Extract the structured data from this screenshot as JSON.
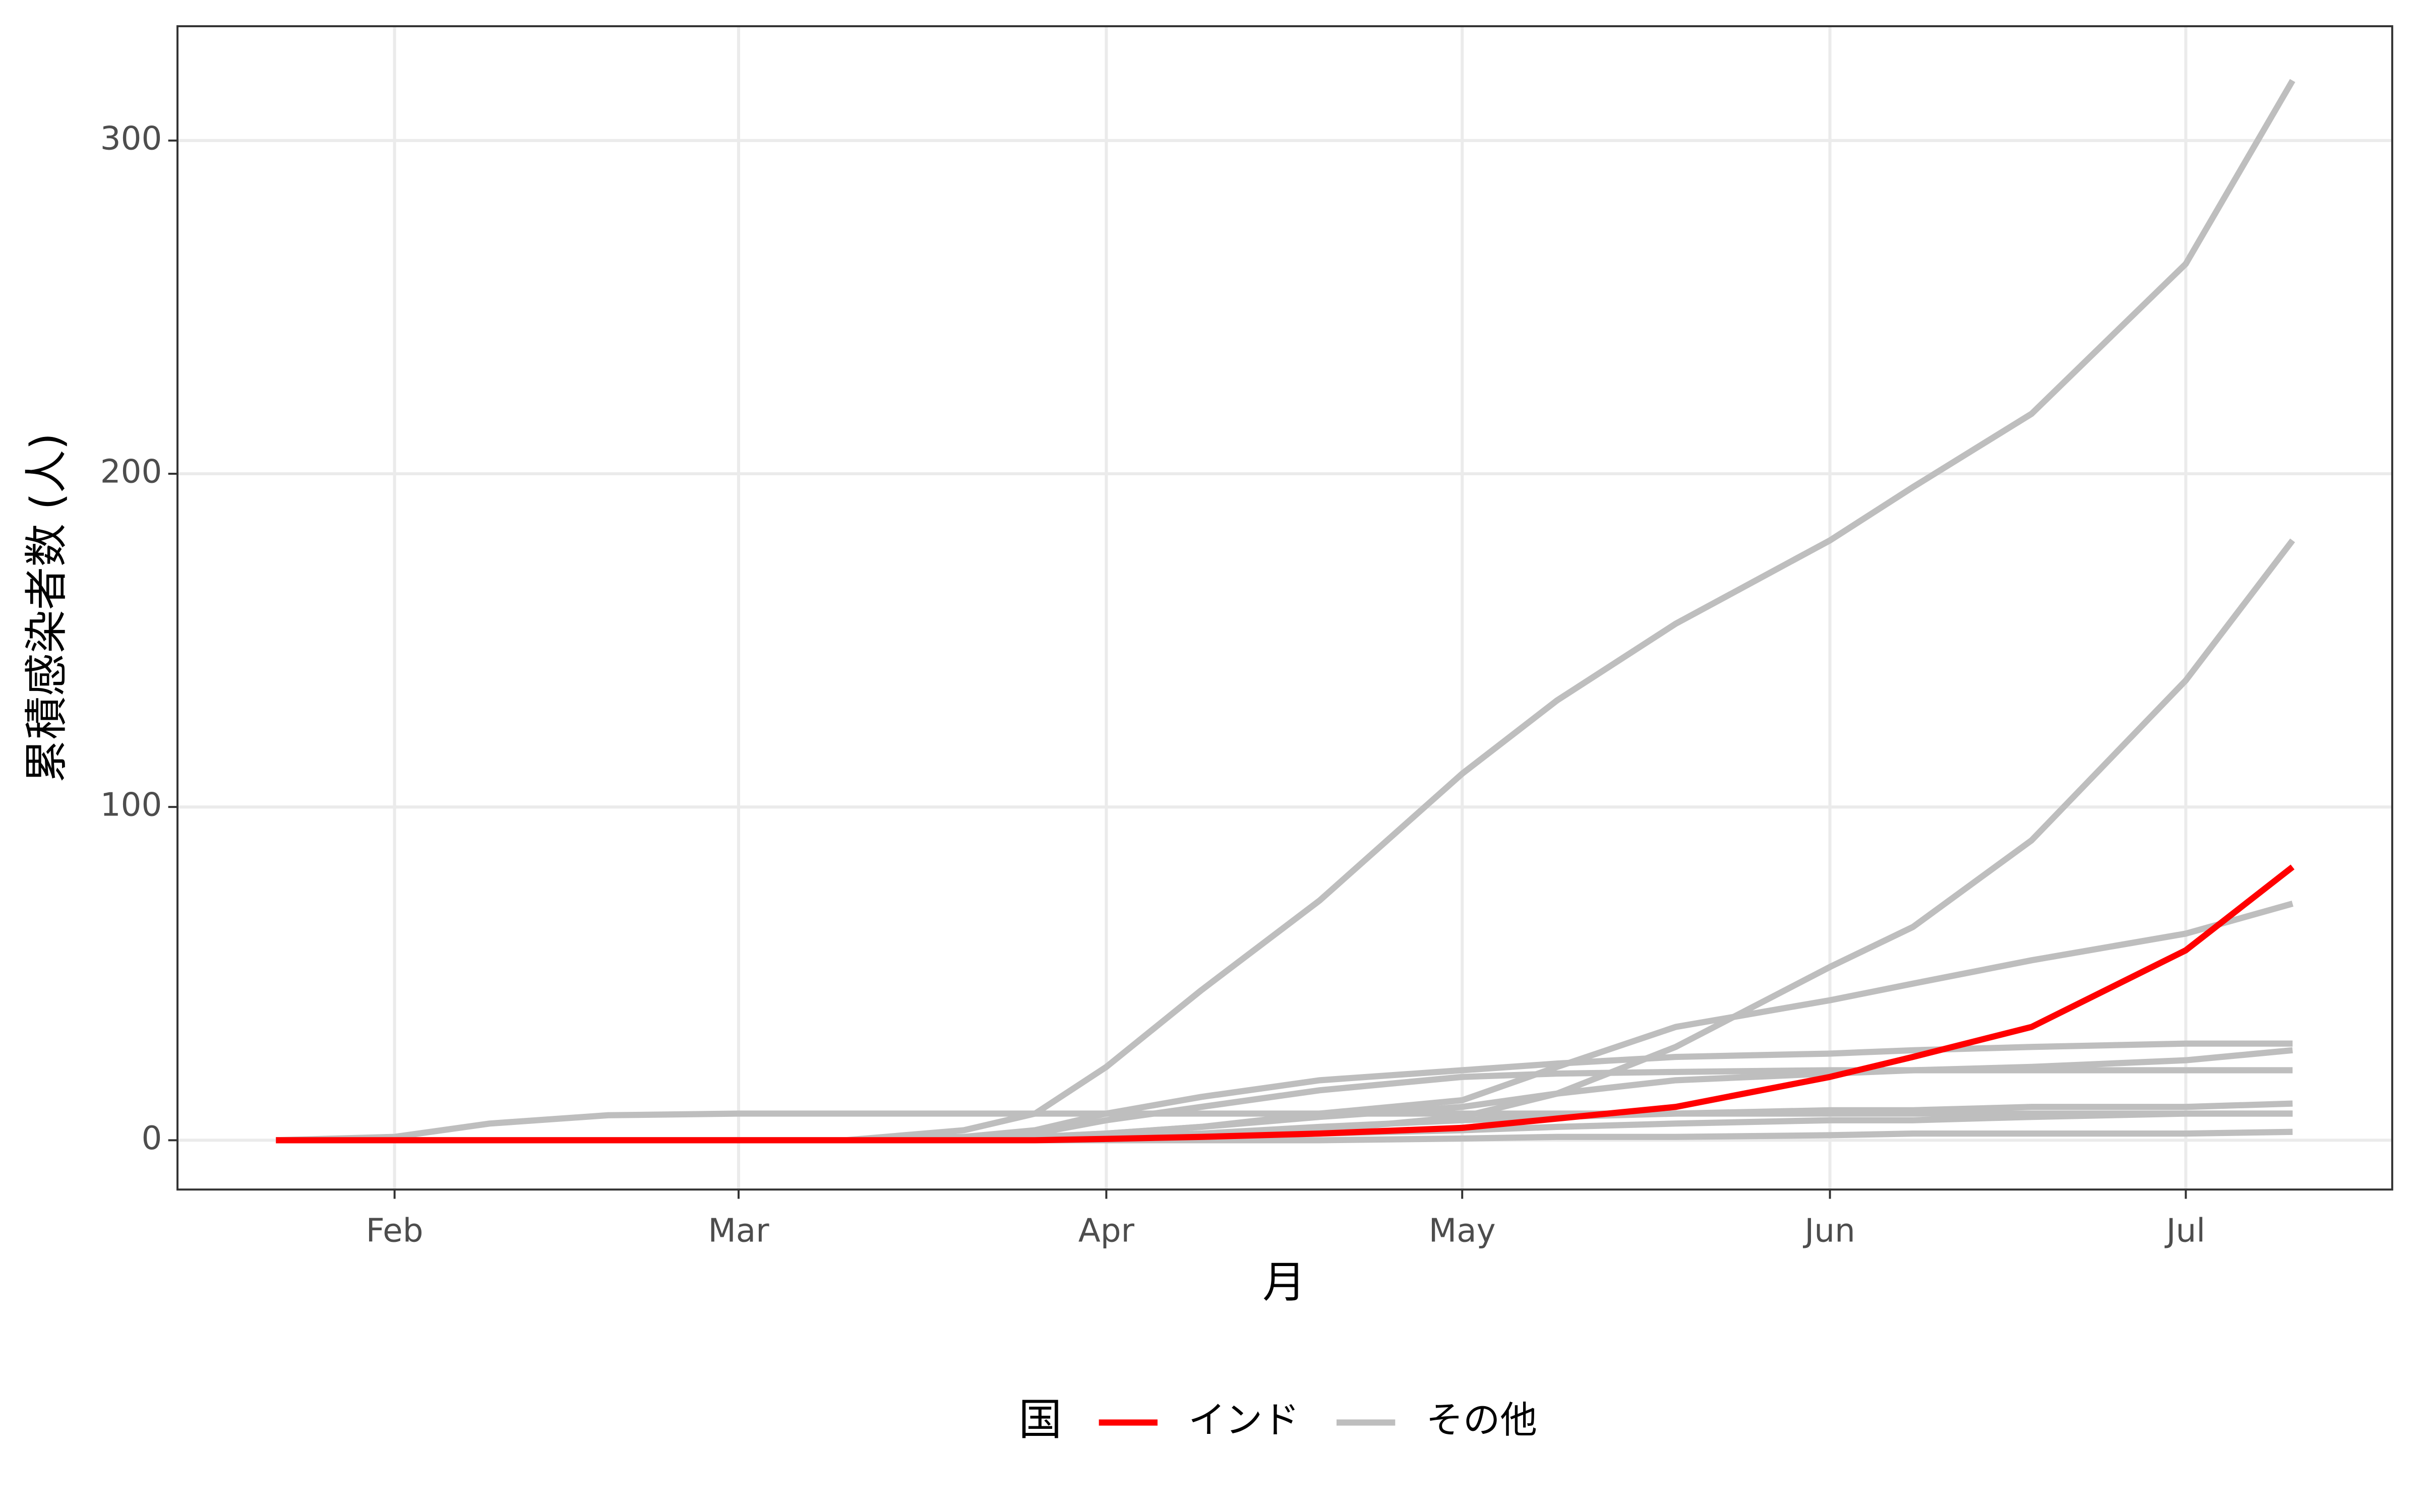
{
  "chart_data": {
    "type": "line",
    "x_label": "月",
    "y_label": "累積感染者数 (人)",
    "legend_title": "国",
    "x": [
      22,
      32,
      40,
      50,
      61,
      70,
      80,
      86,
      92,
      100,
      110,
      122,
      130,
      140,
      153,
      160,
      170,
      183,
      192
    ],
    "xlim": [
      13.7,
      200.4
    ],
    "xticks": [
      {
        "value": 32,
        "label": "Feb"
      },
      {
        "value": 61,
        "label": "Mar"
      },
      {
        "value": 92,
        "label": "Apr"
      },
      {
        "value": 122,
        "label": "May"
      },
      {
        "value": 153,
        "label": "Jun"
      },
      {
        "value": 183,
        "label": "Jul"
      }
    ],
    "ylim": [
      -14.8,
      334.3
    ],
    "yticks": [
      0,
      100,
      200,
      300
    ],
    "grid": true,
    "legend_position": "bottom",
    "series": [
      {
        "name": "インド",
        "color": "#ff0000",
        "values": [
          0,
          0,
          0,
          0,
          0,
          0,
          0,
          0,
          0.4,
          1,
          2,
          3.7,
          6.5,
          10,
          19,
          25,
          34,
          57,
          82
        ]
      },
      {
        "name": "その他",
        "color": "#bebebe",
        "values": [
          0,
          0,
          0,
          0,
          0,
          0,
          3,
          8,
          22,
          45,
          72,
          110,
          132,
          155,
          180,
          196,
          218,
          263,
          318
        ]
      },
      {
        "name": "その他",
        "color": "#bebebe",
        "values": [
          0,
          0,
          0,
          0,
          0,
          0,
          0,
          0,
          0,
          1,
          3,
          7,
          14,
          28,
          52,
          64,
          90,
          138,
          180
        ]
      },
      {
        "name": "その他",
        "color": "#bebebe",
        "values": [
          0,
          0,
          0,
          0,
          0,
          0,
          0,
          1,
          2,
          4,
          8,
          12,
          22,
          34,
          42,
          47,
          54,
          62,
          71
        ]
      },
      {
        "name": "その他",
        "color": "#bebebe",
        "values": [
          0,
          1,
          5,
          7.5,
          8,
          8,
          8,
          8,
          8,
          8,
          8,
          8,
          8,
          8,
          8,
          8,
          8,
          8,
          8
        ]
      },
      {
        "name": "その他",
        "color": "#bebebe",
        "values": [
          0,
          0,
          0,
          0,
          0,
          0,
          1,
          3,
          8,
          13,
          18,
          21,
          23,
          25,
          26,
          27,
          28,
          29,
          29
        ]
      },
      {
        "name": "その他",
        "color": "#bebebe",
        "values": [
          0,
          0,
          0,
          0,
          0,
          0,
          1,
          2,
          6,
          10,
          15,
          19,
          20,
          20.5,
          21,
          21,
          21,
          21,
          21
        ]
      },
      {
        "name": "その他",
        "color": "#bebebe",
        "values": [
          0,
          0,
          0,
          0,
          0,
          0,
          0,
          1,
          2,
          4,
          7,
          10,
          14,
          18,
          20,
          21,
          22,
          24,
          27
        ]
      },
      {
        "name": "その他",
        "color": "#bebebe",
        "values": [
          0,
          0,
          0,
          0,
          0,
          0,
          0,
          0,
          1,
          2,
          4,
          6,
          7,
          8,
          9,
          9,
          10,
          10,
          11
        ]
      },
      {
        "name": "その他",
        "color": "#bebebe",
        "values": [
          0,
          0,
          0,
          0,
          0,
          0,
          0,
          0,
          0,
          1,
          2,
          3,
          4,
          5,
          6,
          6,
          7,
          8,
          8
        ]
      },
      {
        "name": "その他",
        "color": "#bebebe",
        "values": [
          0,
          0,
          0,
          0,
          0,
          0,
          0,
          0,
          0,
          0,
          0,
          0.5,
          1,
          1,
          1.5,
          2,
          2,
          2,
          2.5
        ]
      }
    ]
  }
}
